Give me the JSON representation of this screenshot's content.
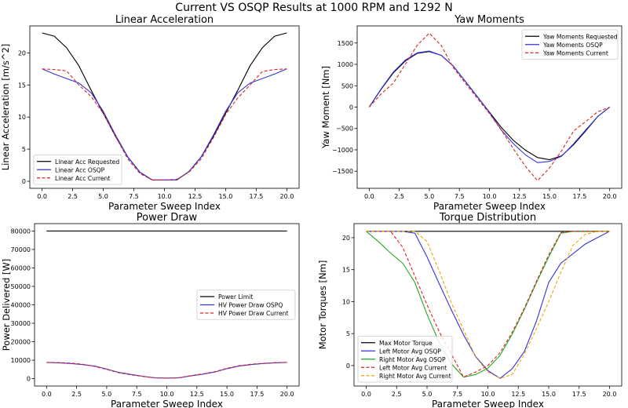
{
  "figure": {
    "title": "Current VS OSQP Results at 1000 RPM and 1292 N"
  },
  "chart_data": [
    {
      "type": "line",
      "title": "Linear Acceleration",
      "xlabel": "Parameter Sweep Index",
      "ylabel": "Linear Acceleration [m/s^2]",
      "xlim": [
        -1,
        21
      ],
      "ylim": [
        -1.1,
        24.2
      ],
      "xticks": [
        0,
        2.5,
        5,
        7.5,
        10,
        12.5,
        15,
        17.5,
        20
      ],
      "xtick_labels": [
        "0.0",
        "2.5",
        "5.0",
        "7.5",
        "10.0",
        "12.5",
        "15.0",
        "17.5",
        "20.0"
      ],
      "yticks": [
        0,
        5,
        10,
        15,
        20
      ],
      "ytick_labels": [
        "0",
        "5",
        "10",
        "15",
        "20"
      ],
      "legend": "lower-left",
      "x": [
        0,
        1,
        2,
        3,
        4,
        5,
        6,
        7,
        8,
        9,
        10,
        11,
        12,
        13,
        14,
        15,
        16,
        17,
        18,
        19,
        20
      ],
      "series": [
        {
          "name": "Linear Acc Requested",
          "color": "#000000",
          "dash": "solid",
          "values": [
            23.1,
            22.6,
            20.8,
            18.0,
            14.2,
            10.6,
            7.0,
            3.8,
            1.4,
            0.2,
            0.2,
            0.2,
            1.5,
            3.8,
            7.0,
            10.6,
            14.2,
            18.0,
            20.8,
            22.6,
            23.1
          ]
        },
        {
          "name": "Linear Acc OSQP",
          "color": "#3333dd",
          "dash": "solid",
          "values": [
            17.5,
            16.7,
            16.0,
            15.3,
            13.8,
            10.9,
            7.2,
            3.8,
            1.4,
            0.2,
            0.2,
            0.2,
            1.5,
            3.8,
            7.2,
            10.9,
            13.8,
            15.3,
            16.0,
            16.7,
            17.5
          ]
        },
        {
          "name": "Linear Acc Current",
          "color": "#dd2222",
          "dash": "dashed",
          "values": [
            17.5,
            17.4,
            17.2,
            15.0,
            13.2,
            10.6,
            7.0,
            3.5,
            1.2,
            0.2,
            0.2,
            0.3,
            1.4,
            3.5,
            6.8,
            10.4,
            13.0,
            15.0,
            17.1,
            17.4,
            17.5
          ]
        }
      ]
    },
    {
      "type": "line",
      "title": "Yaw Moments",
      "xlabel": "Parameter Sweep Index",
      "ylabel": "Yaw Moment [Nm]",
      "xlim": [
        -1,
        21
      ],
      "ylim": [
        -1900,
        1900
      ],
      "xticks": [
        0,
        2.5,
        5,
        7.5,
        10,
        12.5,
        15,
        17.5,
        20
      ],
      "xtick_labels": [
        "0.0",
        "2.5",
        "5.0",
        "7.5",
        "10.0",
        "12.5",
        "15.0",
        "17.5",
        "20.0"
      ],
      "yticks": [
        -1500,
        -1000,
        -500,
        0,
        500,
        1000,
        1500
      ],
      "ytick_labels": [
        "−1500",
        "−1000",
        "−500",
        "0",
        "500",
        "1000",
        "1500"
      ],
      "legend": "upper-right",
      "x": [
        0,
        1,
        2,
        3,
        4,
        5,
        6,
        7,
        8,
        9,
        10,
        11,
        12,
        13,
        14,
        15,
        16,
        17,
        18,
        19,
        20
      ],
      "series": [
        {
          "name": "Yaw Moments Requested",
          "color": "#000000",
          "dash": "solid",
          "values": [
            0,
            420,
            800,
            1080,
            1260,
            1300,
            1210,
            960,
            600,
            240,
            -120,
            -480,
            -780,
            -1010,
            -1180,
            -1230,
            -1140,
            -880,
            -560,
            -220,
            0
          ]
        },
        {
          "name": "Yaw Moments OSQP",
          "color": "#3333dd",
          "dash": "solid",
          "values": [
            0,
            430,
            820,
            1100,
            1270,
            1310,
            1210,
            960,
            600,
            240,
            -130,
            -540,
            -860,
            -1120,
            -1300,
            -1270,
            -1150,
            -860,
            -540,
            -220,
            0
          ]
        },
        {
          "name": "Yaw Moments Current",
          "color": "#dd2222",
          "dash": "dashed",
          "values": [
            0,
            310,
            560,
            1000,
            1450,
            1730,
            1440,
            920,
            560,
            200,
            -150,
            -540,
            -980,
            -1390,
            -1720,
            -1420,
            -1020,
            -560,
            -340,
            -110,
            0
          ]
        }
      ]
    },
    {
      "type": "line",
      "title": "Power Draw",
      "xlabel": "Parameter Sweep Index",
      "ylabel": "Power Delivered [W]",
      "xlim": [
        -1,
        21
      ],
      "ylim": [
        -4000,
        84000
      ],
      "xticks": [
        0,
        2.5,
        5,
        7.5,
        10,
        12.5,
        15,
        17.5,
        20
      ],
      "xtick_labels": [
        "0.0",
        "2.5",
        "5.0",
        "7.5",
        "10.0",
        "12.5",
        "15.0",
        "17.5",
        "20.0"
      ],
      "yticks": [
        0,
        10000,
        20000,
        30000,
        40000,
        50000,
        60000,
        70000,
        80000
      ],
      "ytick_labels": [
        "0",
        "10000",
        "20000",
        "30000",
        "40000",
        "50000",
        "60000",
        "70000",
        "80000"
      ],
      "legend": "center-right",
      "x": [
        0,
        1,
        2,
        3,
        4,
        5,
        6,
        7,
        8,
        9,
        10,
        11,
        12,
        13,
        14,
        15,
        16,
        17,
        18,
        19,
        20
      ],
      "series": [
        {
          "name": "Power Limit",
          "color": "#000000",
          "dash": "solid",
          "values": [
            80000,
            80000,
            80000,
            80000,
            80000,
            80000,
            80000,
            80000,
            80000,
            80000,
            80000,
            80000,
            80000,
            80000,
            80000,
            80000,
            80000,
            80000,
            80000,
            80000,
            80000
          ]
        },
        {
          "name": "HV Power Draw OSPQ",
          "color": "#3333dd",
          "dash": "solid",
          "values": [
            8800,
            8600,
            8200,
            7600,
            6800,
            5200,
            3400,
            2300,
            1300,
            400,
            300,
            400,
            1500,
            2400,
            3600,
            5400,
            6800,
            7600,
            8200,
            8600,
            8800
          ]
        },
        {
          "name": "HV Power Draw Current",
          "color": "#dd2222",
          "dash": "dashed",
          "values": [
            8800,
            8700,
            8400,
            7800,
            6600,
            5000,
            3200,
            2100,
            1200,
            400,
            300,
            500,
            1600,
            2600,
            3800,
            5600,
            7000,
            7800,
            8300,
            8700,
            8800
          ]
        }
      ]
    },
    {
      "type": "line",
      "title": "Torque Distribution",
      "xlabel": "Parameter Sweep Index",
      "ylabel": "Motor Torques [Nm]",
      "xlim": [
        -1,
        21
      ],
      "ylim": [
        -3.2,
        22.2
      ],
      "xticks": [
        0,
        2.5,
        5,
        7.5,
        10,
        12.5,
        15,
        17.5,
        20
      ],
      "xtick_labels": [
        "0.0",
        "2.5",
        "5.0",
        "7.5",
        "10.0",
        "12.5",
        "15.0",
        "17.5",
        "20.0"
      ],
      "yticks": [
        0,
        5,
        10,
        15,
        20
      ],
      "ytick_labels": [
        "0",
        "5",
        "10",
        "15",
        "20"
      ],
      "legend": "lower-left",
      "x": [
        0,
        1,
        2,
        3,
        4,
        5,
        6,
        7,
        8,
        9,
        10,
        11,
        12,
        13,
        14,
        15,
        16,
        17,
        18,
        19,
        20
      ],
      "series": [
        {
          "name": "Max Motor Torque",
          "color": "#000000",
          "dash": "solid",
          "values": [
            21,
            21,
            21,
            21,
            21,
            21,
            21,
            21,
            21,
            21,
            21,
            21,
            21,
            21,
            21,
            21,
            21,
            21,
            21,
            21,
            21
          ]
        },
        {
          "name": "Left Motor Avg OSQP",
          "color": "#3333dd",
          "dash": "solid",
          "values": [
            21,
            21,
            21,
            21,
            20.7,
            17.0,
            12.8,
            8.7,
            4.8,
            1.4,
            -0.8,
            -2.0,
            -0.5,
            2.2,
            7.0,
            13.0,
            16.0,
            17.5,
            19.0,
            20.0,
            21.0
          ]
        },
        {
          "name": "Right Motor Avg OSQP",
          "color": "#22aa22",
          "dash": "solid",
          "values": [
            21,
            19.4,
            17.6,
            16.0,
            13.0,
            8.0,
            3.6,
            0.3,
            -1.8,
            -1.4,
            -0.4,
            1.6,
            4.9,
            8.8,
            13.0,
            17.0,
            20.7,
            21,
            21,
            21,
            21
          ]
        },
        {
          "name": "Left Motor Avg Current",
          "color": "#dd2222",
          "dash": "dashed",
          "values": [
            21,
            21,
            21,
            18.5,
            14.0,
            9.5,
            5.3,
            1.8,
            -1.8,
            -1.0,
            0.0,
            2.0,
            5.2,
            9.0,
            13.2,
            17.3,
            20.8,
            21,
            21,
            21,
            21
          ]
        },
        {
          "name": "Right Motor Avg Current",
          "color": "#f0a800",
          "dash": "dashed",
          "values": [
            21,
            21,
            21,
            21,
            21,
            19.4,
            14.8,
            9.8,
            5.6,
            1.3,
            -1.0,
            -2.0,
            -1.4,
            1.8,
            5.8,
            10.0,
            14.6,
            18.8,
            20.5,
            21,
            21
          ]
        }
      ]
    }
  ]
}
